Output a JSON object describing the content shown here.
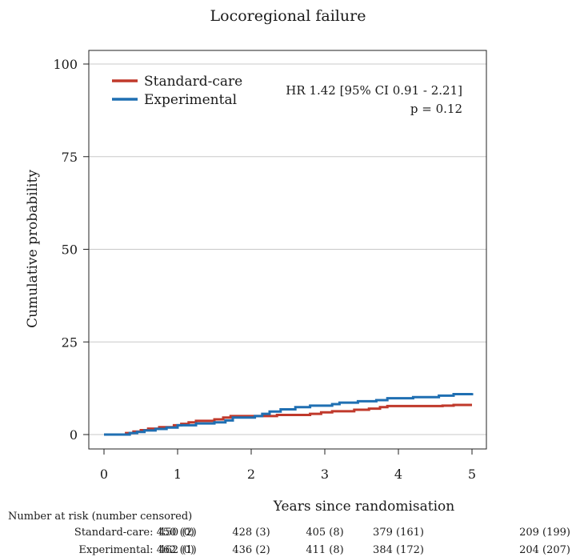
{
  "chart_data": {
    "type": "line",
    "title": "Locoregional failure",
    "xlabel": "Years since randomisation",
    "ylabel": "Cumulative probability",
    "xlim": [
      0,
      5
    ],
    "ylim": [
      0,
      100
    ],
    "x_ticks": [
      0,
      1,
      2,
      3,
      4,
      5
    ],
    "y_ticks": [
      0,
      25,
      50,
      75,
      100
    ],
    "grid": "horizontal",
    "legend_position": "top-left",
    "annotation": {
      "hr": "HR 1.42 [95% CI 0.91 - 2.21]",
      "p": "p = 0.12"
    },
    "series": [
      {
        "name": "Standard-care",
        "color": "#c0392b",
        "step": true,
        "x": [
          0,
          0.3,
          0.4,
          0.5,
          0.6,
          0.75,
          0.95,
          1.05,
          1.15,
          1.25,
          1.5,
          1.62,
          1.72,
          2.35,
          2.8,
          2.95,
          3.1,
          3.4,
          3.6,
          3.75,
          3.85,
          4.6,
          4.75,
          5.0
        ],
        "y": [
          0,
          0.4,
          0.8,
          1.2,
          1.6,
          2.0,
          2.5,
          2.9,
          3.3,
          3.7,
          4.1,
          4.6,
          5.0,
          5.3,
          5.6,
          6.0,
          6.3,
          6.7,
          7.0,
          7.4,
          7.7,
          7.8,
          8.0,
          8.0
        ]
      },
      {
        "name": "Experimental",
        "color": "#1f6fb2",
        "step": true,
        "x": [
          0,
          0.35,
          0.45,
          0.55,
          0.7,
          0.85,
          1.0,
          1.25,
          1.5,
          1.65,
          1.75,
          2.05,
          2.15,
          2.25,
          2.4,
          2.6,
          2.8,
          3.1,
          3.2,
          3.45,
          3.7,
          3.85,
          4.2,
          4.55,
          4.75,
          5.0
        ],
        "y": [
          0,
          0.4,
          0.7,
          1.1,
          1.5,
          1.9,
          2.5,
          3.0,
          3.3,
          3.8,
          4.6,
          5.0,
          5.6,
          6.2,
          6.8,
          7.4,
          7.8,
          8.2,
          8.6,
          9.0,
          9.3,
          9.8,
          10.1,
          10.5,
          10.9,
          11.2
        ]
      }
    ],
    "risk_table": {
      "heading": "Number at risk (number censored)",
      "rows": [
        {
          "label": "Standard-care: 450 (0)",
          "values": [
            "450 (2)",
            "428 (3)",
            "405 (8)",
            "379 (161)",
            "209 (199)"
          ]
        },
        {
          "label": "Experimental: 462 (0)",
          "values": [
            "462 (1)",
            "436 (2)",
            "411 (8)",
            "384 (172)",
            "204 (207)"
          ]
        }
      ]
    }
  }
}
